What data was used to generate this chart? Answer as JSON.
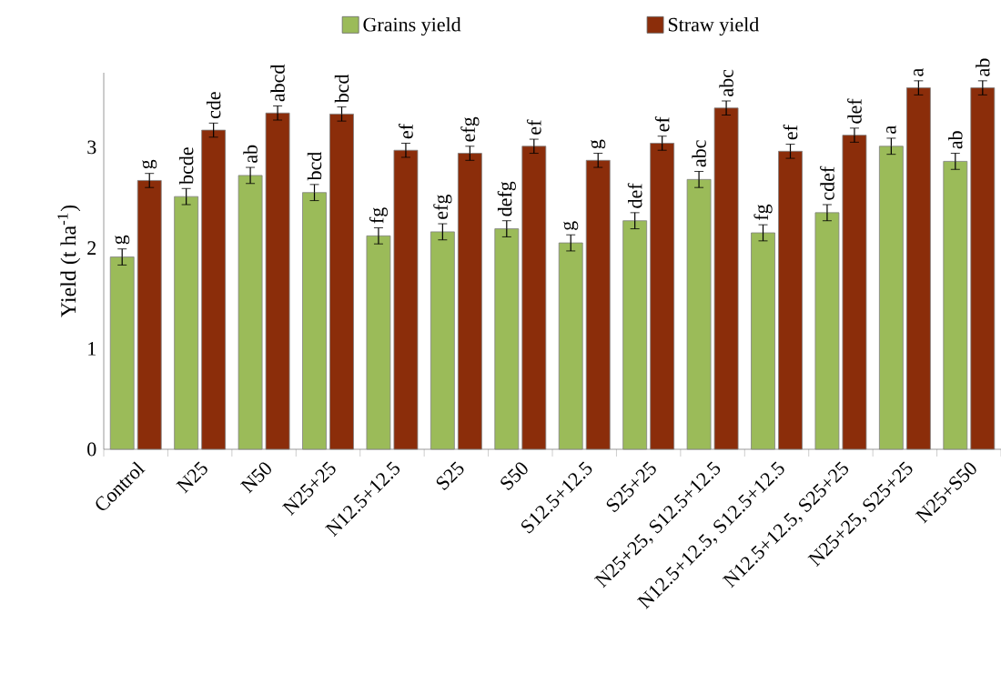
{
  "chart_data": {
    "type": "bar",
    "ylabel": "Yield (t ha$^{-1}$)",
    "categories": [
      "Control",
      "N25",
      "N50",
      "N25+25",
      "N12.5+12.5",
      "S25",
      "S50",
      "S12.5+12.5",
      "S25+25",
      "N25+25, S12.5+12.5",
      "N12.5+12.5, S12.5+12.5",
      "N12.5+12.5, S25+25",
      "N25+25, S25+25",
      "N25+S50"
    ],
    "series": [
      {
        "name": "Grains yield",
        "color": "#9bbb59",
        "values": [
          1.91,
          2.51,
          2.72,
          2.55,
          2.12,
          2.16,
          2.19,
          2.05,
          2.27,
          2.68,
          2.15,
          2.35,
          3.01,
          2.86
        ],
        "errors": [
          0.08,
          0.08,
          0.08,
          0.08,
          0.08,
          0.08,
          0.08,
          0.08,
          0.08,
          0.08,
          0.08,
          0.08,
          0.08,
          0.08
        ],
        "value_labels": [
          "g",
          "bcde",
          "ab",
          "bcd",
          "fg",
          "efg",
          "defg",
          "g",
          "def",
          "abc",
          "fg",
          "cdef",
          "a",
          "ab"
        ]
      },
      {
        "name": "Straw yield",
        "color": "#8b2d0a",
        "values": [
          2.67,
          3.17,
          3.34,
          3.33,
          2.97,
          2.94,
          3.01,
          2.87,
          3.04,
          3.39,
          2.96,
          3.12,
          3.59,
          3.59
        ],
        "errors": [
          0.07,
          0.07,
          0.07,
          0.07,
          0.07,
          0.07,
          0.07,
          0.07,
          0.07,
          0.07,
          0.07,
          0.07,
          0.07,
          0.07
        ],
        "value_labels": [
          "g",
          "cde",
          "abcd",
          "bcd",
          "ef",
          "efg",
          "ef",
          "g",
          "ef",
          "abc",
          "ef",
          "def",
          "a",
          "ab"
        ]
      }
    ],
    "ylim": [
      0,
      3.74
    ],
    "yticks": [
      0,
      1,
      2,
      3
    ],
    "legend": "top"
  }
}
